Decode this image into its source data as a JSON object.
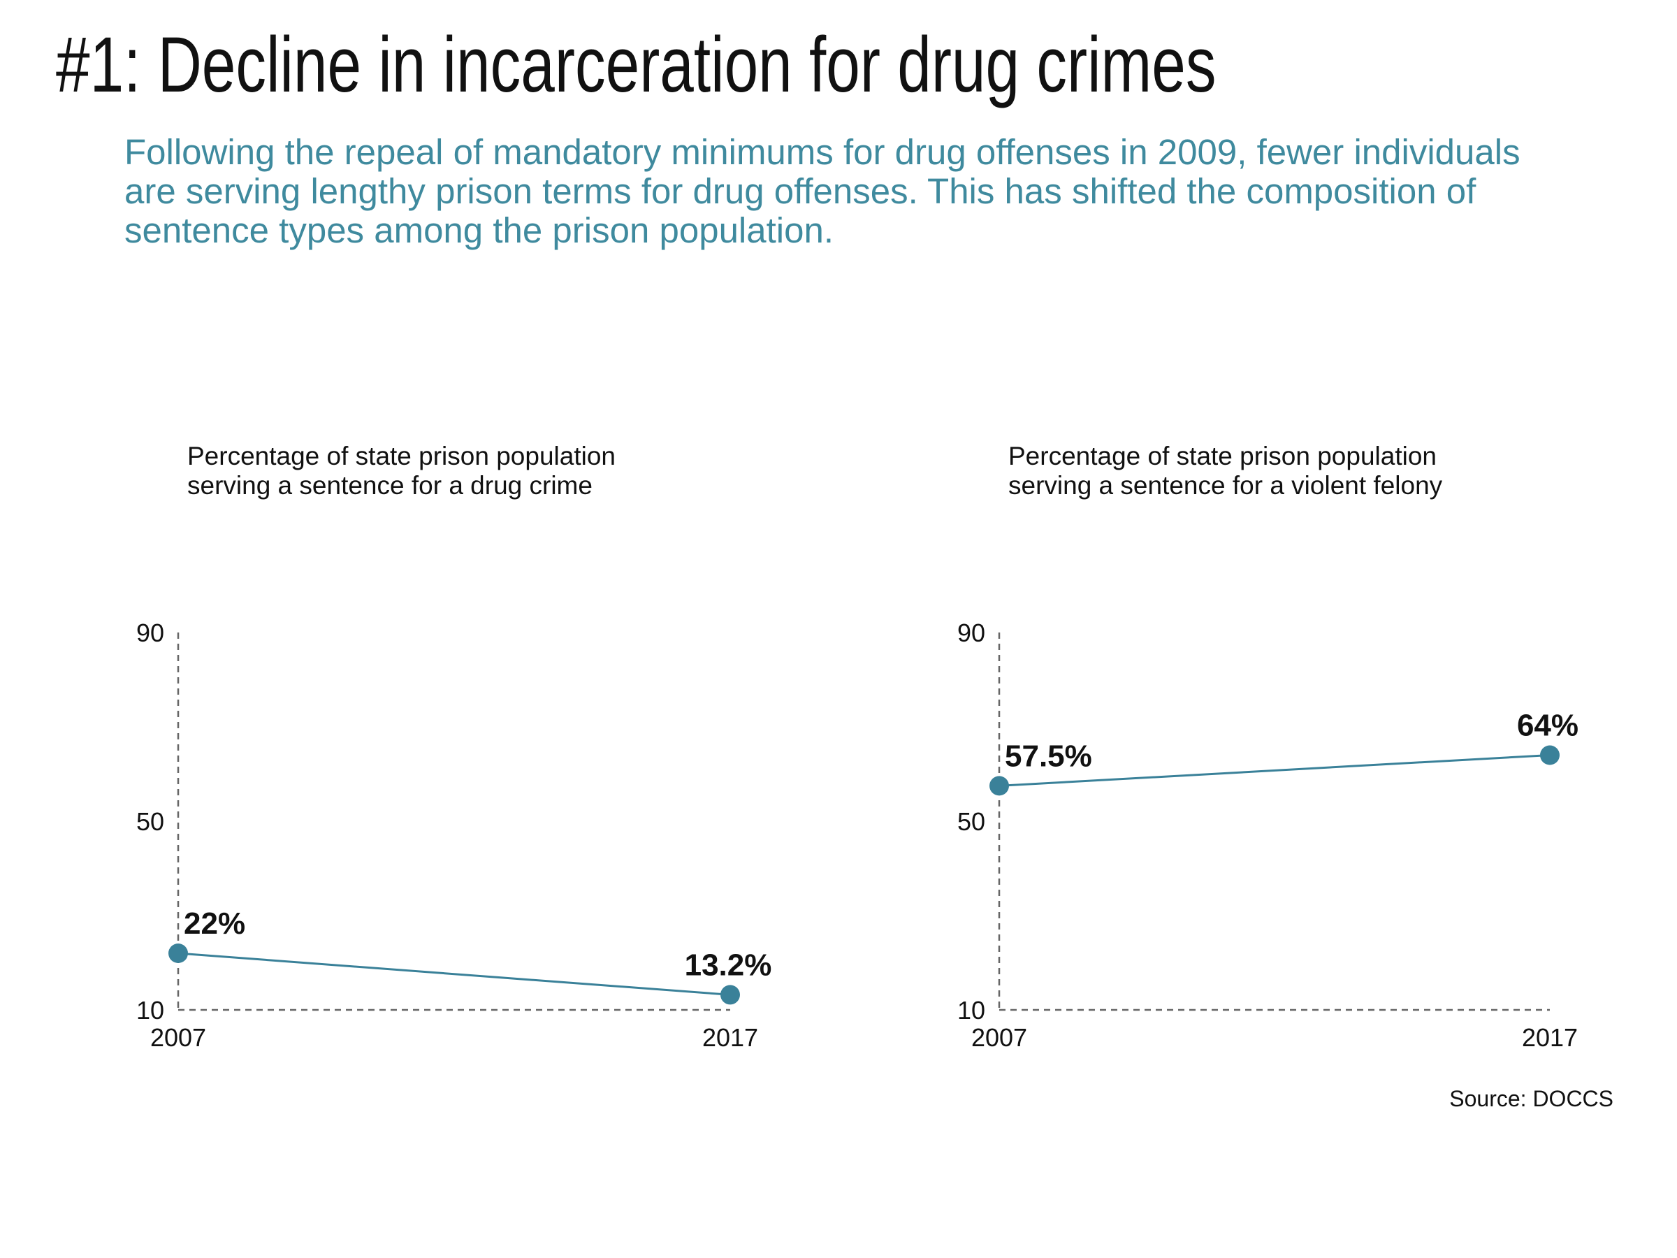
{
  "headline": "#1: Decline in incarceration for drug crimes",
  "dek": "Following the repeal of mandatory minimums for drug offenses in 2009, fewer individuals are serving lengthy prison terms for drug offenses. This has shifted the composition of sentence types among the prison population.",
  "source": "Source: DOCCS",
  "colors": {
    "series": "#3a8199",
    "text": "#111111",
    "axis": "#666666",
    "dek": "#3f8a9e"
  },
  "chart_data": [
    {
      "type": "line",
      "title_lines": [
        "Percentage of state prison population",
        "serving a sentence for a drug crime"
      ],
      "x": [
        "2007",
        "2017"
      ],
      "values": [
        22,
        13.2
      ],
      "labels": [
        "22%",
        "13.2%"
      ],
      "ylim": [
        10,
        90
      ],
      "yticks": [
        10,
        50,
        90
      ],
      "grid": false
    },
    {
      "type": "line",
      "title_lines": [
        "Percentage of state prison population",
        "serving a sentence for a violent felony"
      ],
      "x": [
        "2007",
        "2017"
      ],
      "values": [
        57.5,
        64
      ],
      "labels": [
        "57.5%",
        "64%"
      ],
      "ylim": [
        10,
        90
      ],
      "yticks": [
        10,
        50,
        90
      ],
      "grid": false
    }
  ]
}
